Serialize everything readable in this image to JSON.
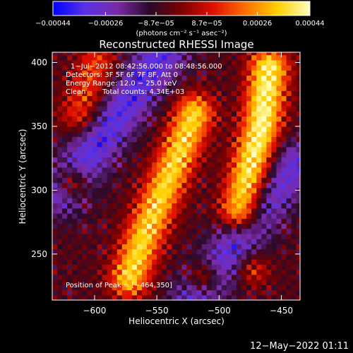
{
  "chart_data": {
    "type": "heatmap",
    "title": "Reconstructed RHESSI Image",
    "xlabel": "Heliocentric X (arcsec)",
    "ylabel": "Heliocentric Y (arcsec)",
    "xlim": [
      -634,
      -435
    ],
    "ylim": [
      214,
      408
    ],
    "x_ticks": [
      -600,
      -550,
      -500,
      -450
    ],
    "x_tick_labels": [
      "−600",
      "−550",
      "−500",
      "−450"
    ],
    "y_ticks": [
      250,
      300,
      350,
      400
    ],
    "y_tick_labels": [
      "250",
      "300",
      "350",
      "400"
    ],
    "colorbar": {
      "range": [
        -0.00044,
        0.00044
      ],
      "tick_values": [
        -0.00044,
        -0.00026,
        -8.7e-05,
        8.7e-05,
        0.00026,
        0.00044
      ],
      "tick_labels": [
        "−0.00044",
        "−0.00026",
        "−8.7e−05",
        "8.7e−05",
        "0.00026",
        "0.00044"
      ],
      "unit_label": "(photons cm⁻² s⁻¹ asec⁻²)",
      "stops": [
        "#0000ff",
        "#5a32e6",
        "#7a2aa8",
        "#2a0a2a",
        "#7a0000",
        "#e01000",
        "#ff7000",
        "#ffd000",
        "#ffffc0"
      ]
    },
    "annotations": {
      "time": "1−Jul−2012 08:42:56.000 to 08:48:56.000",
      "detectors": "Detectors: 3F 5F 6F 7F 8F, Att 0",
      "energy": "Energy Range: 12.0 − 25.0 keV",
      "method": "Clean",
      "counts": "Total counts: 4.34E+03",
      "peak": "Position of Peak = [−464,350]"
    },
    "peak_position": [
      -464,
      350
    ],
    "intensity_structure": {
      "ridges": [
        {
          "path_x": [
            -572,
            -560,
            -545,
            -532,
            -520
          ],
          "path_y": [
            232,
            265,
            300,
            330,
            360
          ],
          "strength": 0.85
        },
        {
          "path_x": [
            -483,
            -474,
            -466,
            -460
          ],
          "path_y": [
            285,
            320,
            350,
            395
          ],
          "strength": 1.0
        },
        {
          "path_x": [
            -612,
            -598
          ],
          "path_y": [
            360,
            400
          ],
          "strength": 0.45
        }
      ],
      "blobs": [
        {
          "x": -618,
          "y": 306,
          "strength": 0.6
        },
        {
          "x": -512,
          "y": 232,
          "strength": 0.55
        },
        {
          "x": -473,
          "y": 238,
          "strength": 0.4
        }
      ],
      "negative_bands": [
        {
          "path_x": [
            -625,
            -545
          ],
          "path_y": [
            300,
            408
          ],
          "strength": -0.55
        },
        {
          "path_x": [
            -520,
            -440
          ],
          "path_y": [
            214,
            320
          ],
          "strength": -0.5
        }
      ]
    }
  },
  "footer": {
    "date": "12−May−2022 01:11"
  }
}
